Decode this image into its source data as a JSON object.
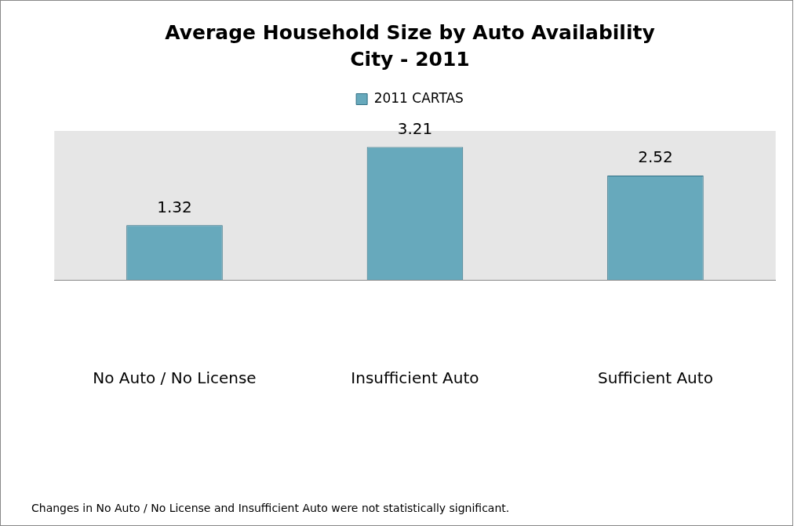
{
  "chart_data": {
    "type": "bar",
    "title": "Average Household Size by Auto Availability",
    "subtitle": "City - 2011",
    "categories": [
      "No Auto / No License",
      "Insufficient Auto",
      "Sufficient Auto"
    ],
    "series": [
      {
        "name": "2011 CARTAS",
        "color": "#67a9bc",
        "values": [
          1.32,
          3.21,
          2.52
        ]
      }
    ],
    "ylim": [
      0,
      3.6
    ],
    "tick_labels": "x",
    "data_labels": true,
    "legend": "top",
    "annotations": [
      "Changes in No Auto / No License and Insufficient Auto were not statistically  significant."
    ]
  }
}
